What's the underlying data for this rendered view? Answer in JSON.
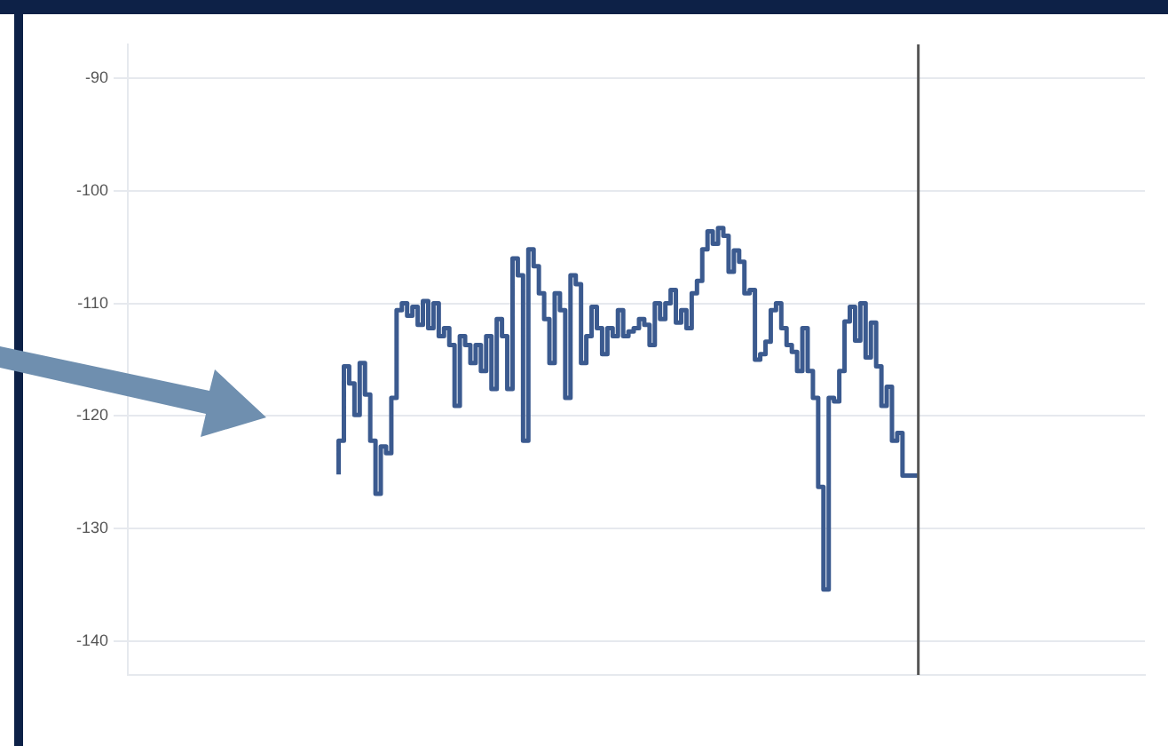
{
  "chart_data": {
    "type": "step",
    "categories": [
      null,
      null,
      null,
      null,
      null,
      null,
      null,
      null,
      null,
      null,
      null,
      null,
      null,
      null,
      null,
      null,
      null,
      null,
      null,
      null,
      null,
      null,
      null,
      null,
      null,
      null,
      null,
      null,
      null,
      null,
      null,
      null,
      null,
      null,
      null,
      null,
      null,
      null,
      null,
      null,
      null,
      null,
      null,
      null,
      null,
      null,
      null,
      null,
      null,
      null,
      null,
      null,
      null,
      null,
      null,
      null,
      null,
      null,
      null,
      null,
      null,
      null,
      null,
      null,
      null,
      null,
      null,
      null,
      null,
      null,
      null,
      null,
      null,
      null,
      null,
      null,
      null,
      null,
      null,
      null,
      null,
      null,
      null,
      null,
      null,
      null,
      null,
      null,
      null,
      null,
      null,
      null,
      null,
      null,
      null,
      null,
      null,
      null,
      null,
      null,
      null,
      null,
      null,
      null,
      null,
      null,
      null,
      null,
      null,
      null,
      null
    ],
    "ylim": [
      -143,
      -87
    ],
    "yticks": [
      -140,
      -130,
      -120,
      -110,
      -100,
      -90
    ],
    "grid": "y",
    "tick_labels": "y",
    "series": [
      {
        "color": "#3b5a8f",
        "values": [
          -125.2,
          -122.2,
          -115.6,
          -117.1,
          -119.9,
          -115.3,
          -118.1,
          -122.2,
          -126.9,
          -122.7,
          -123.3,
          -118.4,
          -110.6,
          -110,
          -111.1,
          -110.3,
          -111.9,
          -109.8,
          -112.2,
          -110,
          -112.9,
          -112.2,
          -113.7,
          -119.1,
          -112.9,
          -113.7,
          -115.3,
          -113.7,
          -116,
          -112.9,
          -117.6,
          -111.4,
          -112.9,
          -117.6,
          -106,
          -107.5,
          -122.2,
          -105.2,
          -106.7,
          -109.1,
          -111.4,
          -115.3,
          -109.1,
          -110.6,
          -118.4,
          -107.5,
          -108.3,
          -115.3,
          -112.9,
          -110.3,
          -112.2,
          -114.5,
          -112.2,
          -112.9,
          -110.6,
          -112.9,
          -112.5,
          -112.2,
          -111.4,
          -111.9,
          -113.7,
          -110,
          -111.4,
          -110,
          -108.8,
          -111.7,
          -110.6,
          -112.2,
          -109.1,
          -108,
          -105.2,
          -103.6,
          -104.7,
          -103.3,
          -104,
          -107.2,
          -105.3,
          -106.3,
          -109.1,
          -108.8,
          -115,
          -114.5,
          -113.4,
          -110.6,
          -110,
          -112.2,
          -113.7,
          -114.3,
          -116,
          -112.2,
          -116,
          -118.4,
          -126.3,
          -135.4,
          -118.4,
          -118.7,
          -116,
          -111.6,
          -110.3,
          -113.3,
          -110,
          -114.8,
          -111.7,
          -115.6,
          -119.1,
          -117.4,
          -122.2,
          -121.5,
          -125.3,
          -125.3,
          -125.3
        ]
      }
    ]
  }
}
